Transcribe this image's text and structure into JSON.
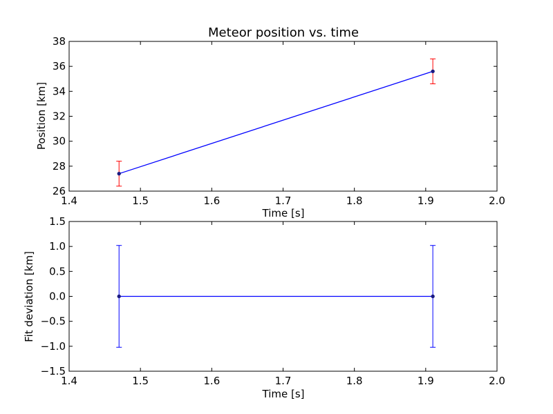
{
  "colors": {
    "background": "#ffffff",
    "axes_frame": "#000000",
    "line_blue": "#0000ff",
    "error_red": "#ff0000",
    "point_dark": "#1a1a80",
    "zero_line_dashed": "#ff0000"
  },
  "chart_data": [
    {
      "type": "line",
      "title": "Meteor position vs. time",
      "xlabel": "Time [s]",
      "ylabel": "Position [km]",
      "xlim": [
        1.4,
        2.0
      ],
      "ylim": [
        26,
        38
      ],
      "xticks": [
        "1.4",
        "1.5",
        "1.6",
        "1.7",
        "1.8",
        "1.9",
        "2.0"
      ],
      "yticks": [
        "26",
        "28",
        "30",
        "32",
        "34",
        "36",
        "38"
      ],
      "x": [
        1.47,
        1.91
      ],
      "series": [
        {
          "values": [
            27.4,
            35.6
          ],
          "yerr": [
            1.0,
            1.0
          ],
          "line_color": "#0000ff",
          "errorbar_color": "#ff0000"
        }
      ],
      "grid": false
    },
    {
      "type": "line",
      "title": "",
      "xlabel": "Time [s]",
      "ylabel": "Fit deviation [km]",
      "xlim": [
        1.4,
        2.0
      ],
      "ylim": [
        -1.5,
        1.5
      ],
      "xticks": [
        "1.4",
        "1.5",
        "1.6",
        "1.7",
        "1.8",
        "1.9",
        "2.0"
      ],
      "yticks": [
        "−1.5",
        "−1.0",
        "−0.5",
        "0.0",
        "0.5",
        "1.0",
        "1.5"
      ],
      "x": [
        1.47,
        1.91
      ],
      "series": [
        {
          "values": [
            0.0,
            0.0
          ],
          "yerr": [
            1.02,
            1.02
          ],
          "line_color": "#0000ff",
          "errorbar_color": "#0000ff"
        }
      ],
      "reference_line": {
        "y": 0.0,
        "style": "dashed",
        "color": "#ff0000"
      },
      "grid": false
    }
  ]
}
